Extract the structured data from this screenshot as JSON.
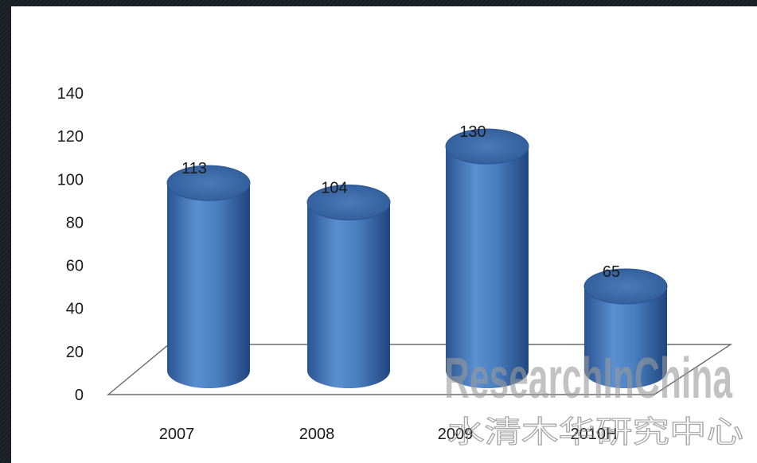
{
  "chart_data": {
    "type": "bar",
    "style": "3d-cylinder",
    "categories": [
      "2007",
      "2008",
      "2009",
      "2010H"
    ],
    "values": [
      113,
      104,
      130,
      65
    ],
    "data_labels": [
      "113",
      "104",
      "130",
      "65"
    ],
    "title": "",
    "xlabel": "",
    "ylabel": "",
    "ylim": [
      0,
      140
    ],
    "yticks": [
      0,
      20,
      40,
      60,
      80,
      100,
      120,
      140
    ],
    "grid": false,
    "legend": "none",
    "colors": {
      "bar": "#4f81bd",
      "bar_dark": "#2a5591",
      "bar_top": "#3d6aa8"
    }
  },
  "watermark": {
    "latin": "ResearchInChina",
    "chinese": "水清木华研究中心"
  }
}
